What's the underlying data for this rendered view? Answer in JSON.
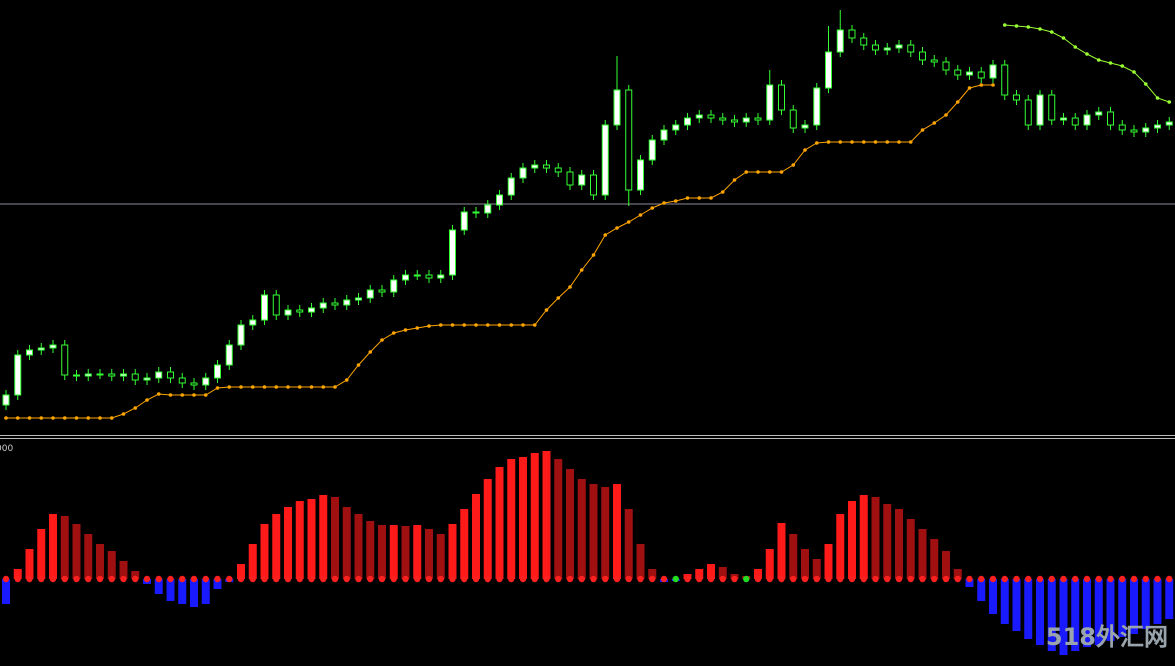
{
  "chart_data": [
    {
      "type": "candlestick",
      "ohlc": [
        [
          31,
          46,
          26,
          41
        ],
        [
          41,
          86,
          36,
          81
        ],
        [
          81,
          91,
          76,
          86
        ],
        [
          86,
          93,
          81,
          88
        ],
        [
          88,
          96,
          83,
          91
        ],
        [
          91,
          96,
          56,
          61
        ],
        [
          61,
          66,
          55,
          60
        ],
        [
          60,
          67,
          55,
          62
        ],
        [
          62,
          67,
          57,
          62
        ],
        [
          62,
          67,
          55,
          60
        ],
        [
          60,
          67,
          55,
          62
        ],
        [
          62,
          67,
          51,
          56
        ],
        [
          56,
          63,
          51,
          58
        ],
        [
          58,
          69,
          53,
          64
        ],
        [
          64,
          69,
          53,
          58
        ],
        [
          58,
          63,
          48,
          53
        ],
        [
          53,
          58,
          46,
          51
        ],
        [
          51,
          63,
          46,
          58
        ],
        [
          58,
          76,
          53,
          71
        ],
        [
          71,
          96,
          66,
          91
        ],
        [
          91,
          116,
          86,
          111
        ],
        [
          111,
          121,
          106,
          116
        ],
        [
          116,
          146,
          111,
          141
        ],
        [
          141,
          146,
          116,
          121
        ],
        [
          121,
          131,
          116,
          126
        ],
        [
          126,
          131,
          119,
          124
        ],
        [
          124,
          133,
          119,
          128
        ],
        [
          128,
          138,
          123,
          133
        ],
        [
          133,
          138,
          126,
          131
        ],
        [
          131,
          141,
          126,
          136
        ],
        [
          136,
          143,
          131,
          138
        ],
        [
          138,
          151,
          133,
          146
        ],
        [
          146,
          151,
          139,
          144
        ],
        [
          144,
          161,
          139,
          156
        ],
        [
          156,
          166,
          151,
          161
        ],
        [
          161,
          166,
          156,
          161
        ],
        [
          161,
          166,
          153,
          158
        ],
        [
          158,
          166,
          153,
          161
        ],
        [
          161,
          211,
          156,
          206
        ],
        [
          206,
          229,
          201,
          224
        ],
        [
          224,
          229,
          218,
          223
        ],
        [
          223,
          236,
          218,
          231
        ],
        [
          231,
          246,
          226,
          241
        ],
        [
          241,
          263,
          236,
          258
        ],
        [
          258,
          273,
          253,
          268
        ],
        [
          268,
          276,
          263,
          271
        ],
        [
          271,
          276,
          263,
          268
        ],
        [
          268,
          273,
          259,
          264
        ],
        [
          264,
          269,
          246,
          251
        ],
        [
          251,
          266,
          246,
          261
        ],
        [
          261,
          266,
          236,
          241
        ],
        [
          241,
          316,
          236,
          311
        ],
        [
          311,
          380,
          306,
          346
        ],
        [
          346,
          351,
          230,
          246
        ],
        [
          246,
          281,
          241,
          276
        ],
        [
          276,
          301,
          271,
          296
        ],
        [
          296,
          311,
          291,
          306
        ],
        [
          306,
          316,
          301,
          311
        ],
        [
          311,
          323,
          306,
          318
        ],
        [
          318,
          326,
          313,
          321
        ],
        [
          321,
          326,
          313,
          318
        ],
        [
          318,
          323,
          311,
          316
        ],
        [
          316,
          321,
          309,
          314
        ],
        [
          314,
          323,
          309,
          318
        ],
        [
          318,
          323,
          311,
          316
        ],
        [
          316,
          366,
          311,
          351
        ],
        [
          351,
          356,
          321,
          326
        ],
        [
          326,
          331,
          303,
          308
        ],
        [
          308,
          316,
          303,
          311
        ],
        [
          311,
          353,
          306,
          348
        ],
        [
          348,
          410,
          343,
          384
        ],
        [
          384,
          426,
          379,
          406
        ],
        [
          406,
          411,
          393,
          398
        ],
        [
          398,
          403,
          386,
          391
        ],
        [
          391,
          396,
          381,
          386
        ],
        [
          386,
          393,
          381,
          388
        ],
        [
          388,
          396,
          383,
          391
        ],
        [
          391,
          396,
          379,
          384
        ],
        [
          384,
          389,
          371,
          376
        ],
        [
          376,
          381,
          369,
          374
        ],
        [
          374,
          379,
          361,
          366
        ],
        [
          366,
          371,
          356,
          361
        ],
        [
          361,
          369,
          356,
          364
        ],
        [
          364,
          369,
          353,
          358
        ],
        [
          358,
          376,
          353,
          371
        ],
        [
          371,
          376,
          336,
          341
        ],
        [
          341,
          346,
          331,
          336
        ],
        [
          336,
          341,
          306,
          311
        ],
        [
          311,
          346,
          306,
          341
        ],
        [
          341,
          346,
          311,
          316
        ],
        [
          316,
          323,
          311,
          318
        ],
        [
          318,
          323,
          306,
          311
        ],
        [
          311,
          326,
          306,
          321
        ],
        [
          321,
          329,
          316,
          324
        ],
        [
          324,
          329,
          306,
          311
        ],
        [
          311,
          316,
          301,
          306
        ],
        [
          306,
          311,
          299,
          304
        ],
        [
          304,
          313,
          299,
          308
        ],
        [
          308,
          316,
          303,
          311
        ],
        [
          311,
          319,
          306,
          314
        ]
      ],
      "up_color": "#ffffff",
      "down_color": "#000000",
      "wick_color": "#33ff33",
      "series": [
        {
          "color": "#ffa500",
          "values": [
            18,
            18,
            18,
            18,
            18,
            18,
            18,
            18,
            18,
            18,
            22,
            28,
            36,
            42,
            41,
            41,
            41,
            41,
            48,
            49,
            49,
            49,
            49,
            49,
            49,
            49,
            49,
            49,
            49,
            56,
            71,
            84,
            96,
            103,
            106,
            108,
            110,
            111,
            111,
            111,
            111,
            111,
            111,
            111,
            111,
            111,
            126,
            138,
            149,
            166,
            181,
            201,
            208,
            214,
            221,
            228,
            233,
            235,
            238,
            238,
            238,
            244,
            256,
            264,
            264,
            264,
            264,
            271,
            286,
            293,
            294,
            294,
            294,
            294,
            294,
            294,
            294,
            294,
            306,
            313,
            321,
            334,
            348,
            351,
            351,
            null,
            null,
            null,
            null,
            null,
            null,
            null,
            null,
            null,
            null,
            null,
            null,
            null,
            null,
            null
          ]
        },
        {
          "color": "#99ff33",
          "values": [
            null,
            null,
            null,
            null,
            null,
            null,
            null,
            null,
            null,
            null,
            null,
            null,
            null,
            null,
            null,
            null,
            null,
            null,
            null,
            null,
            null,
            null,
            null,
            null,
            null,
            null,
            null,
            null,
            null,
            null,
            null,
            null,
            null,
            null,
            null,
            null,
            null,
            null,
            null,
            null,
            null,
            null,
            null,
            null,
            null,
            null,
            null,
            null,
            null,
            null,
            null,
            null,
            null,
            null,
            null,
            null,
            null,
            null,
            null,
            null,
            null,
            null,
            null,
            null,
            null,
            null,
            null,
            null,
            null,
            null,
            null,
            null,
            null,
            null,
            null,
            null,
            null,
            null,
            null,
            null,
            null,
            null,
            null,
            null,
            null,
            411,
            410,
            409,
            407,
            404,
            398,
            389,
            382,
            376,
            373,
            370,
            364,
            352,
            338,
            334
          ]
        }
      ],
      "level": 232,
      "level_color": "#8c8c99",
      "ylim": [
        0,
        436
      ]
    },
    {
      "type": "histogram",
      "label": "000",
      "values": [
        -25,
        10,
        30,
        50,
        65,
        63,
        55,
        45,
        35,
        28,
        18,
        8,
        -5,
        -15,
        -22,
        -25,
        -28,
        -25,
        -10,
        -3,
        15,
        35,
        55,
        65,
        72,
        78,
        80,
        84,
        82,
        72,
        65,
        58,
        54,
        54,
        53,
        54,
        50,
        45,
        55,
        70,
        85,
        100,
        112,
        120,
        122,
        126,
        128,
        120,
        110,
        100,
        95,
        92,
        95,
        70,
        35,
        10,
        -3,
        -2,
        5,
        10,
        15,
        12,
        5,
        3,
        10,
        30,
        56,
        45,
        30,
        20,
        35,
        65,
        78,
        84,
        82,
        75,
        70,
        60,
        50,
        40,
        28,
        10,
        -8,
        -22,
        -35,
        -45,
        -52,
        -60,
        -66,
        -72,
        -76,
        -72,
        -68,
        -66,
        -62,
        -58,
        -55,
        -50,
        -45,
        -40
      ],
      "colors": {
        "rising": "#ff1a1a",
        "falling": "#a01010",
        "negative": "#1a1aff"
      },
      "dot_colors": {
        "signal": "#ff2020",
        "flat": "#22dd22"
      },
      "ylim": [
        -87,
        139
      ]
    },
    {
      "type": "watermark",
      "text": "518外汇网"
    }
  ]
}
